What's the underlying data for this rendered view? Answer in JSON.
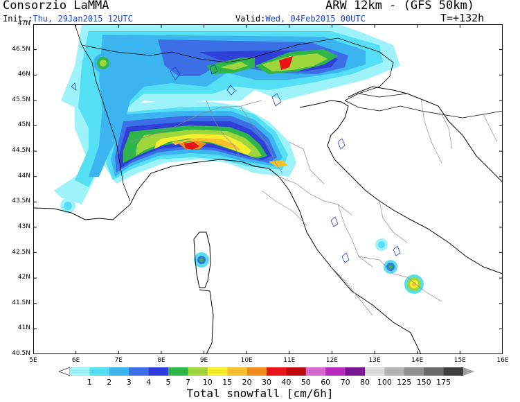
{
  "header": {
    "source": "Consorzio LaMMA",
    "model": "ARW 12km - (GFS 50km)",
    "init_label": "Init.:",
    "init_value": "Thu, 29Jan2015 12UTC",
    "valid_label": "Valid:",
    "valid_value": "Wed, 04Feb2015 00UTC",
    "lead_time": "T=+132h"
  },
  "map": {
    "lat_ticks": [
      "47N",
      "46.5N",
      "46N",
      "45.5N",
      "45N",
      "44.5N",
      "44N",
      "43.5N",
      "43N",
      "42.5N",
      "42N",
      "41.5N",
      "41N",
      "40.5N"
    ],
    "lon_ticks": [
      "5E",
      "6E",
      "7E",
      "8E",
      "9E",
      "10E",
      "11E",
      "12E",
      "13E",
      "14E",
      "15E",
      "16E"
    ],
    "lat_range": [
      40.5,
      47
    ],
    "lon_range": [
      5,
      16
    ]
  },
  "legend": {
    "title": "Total snowfall [cm/6h]",
    "levels": [
      "1",
      "2",
      "3",
      "4",
      "5",
      "7",
      "10",
      "15",
      "20",
      "30",
      "40",
      "50",
      "60",
      "70",
      "80",
      "100",
      "125",
      "150",
      "175"
    ],
    "colors": [
      "#9ef3fb",
      "#55dff5",
      "#3cb4f0",
      "#3c6ee6",
      "#2f3fd7",
      "#2fb64b",
      "#9fd63c",
      "#f6ee2d",
      "#f6c02d",
      "#f38a1e",
      "#e8141a",
      "#bd0a0f",
      "#d46ad0",
      "#b62bbd",
      "#7a1596",
      "#d9d9d9",
      "#b3b3b3",
      "#8f8f8f",
      "#6a6a6a",
      "#3d3d3d"
    ]
  }
}
